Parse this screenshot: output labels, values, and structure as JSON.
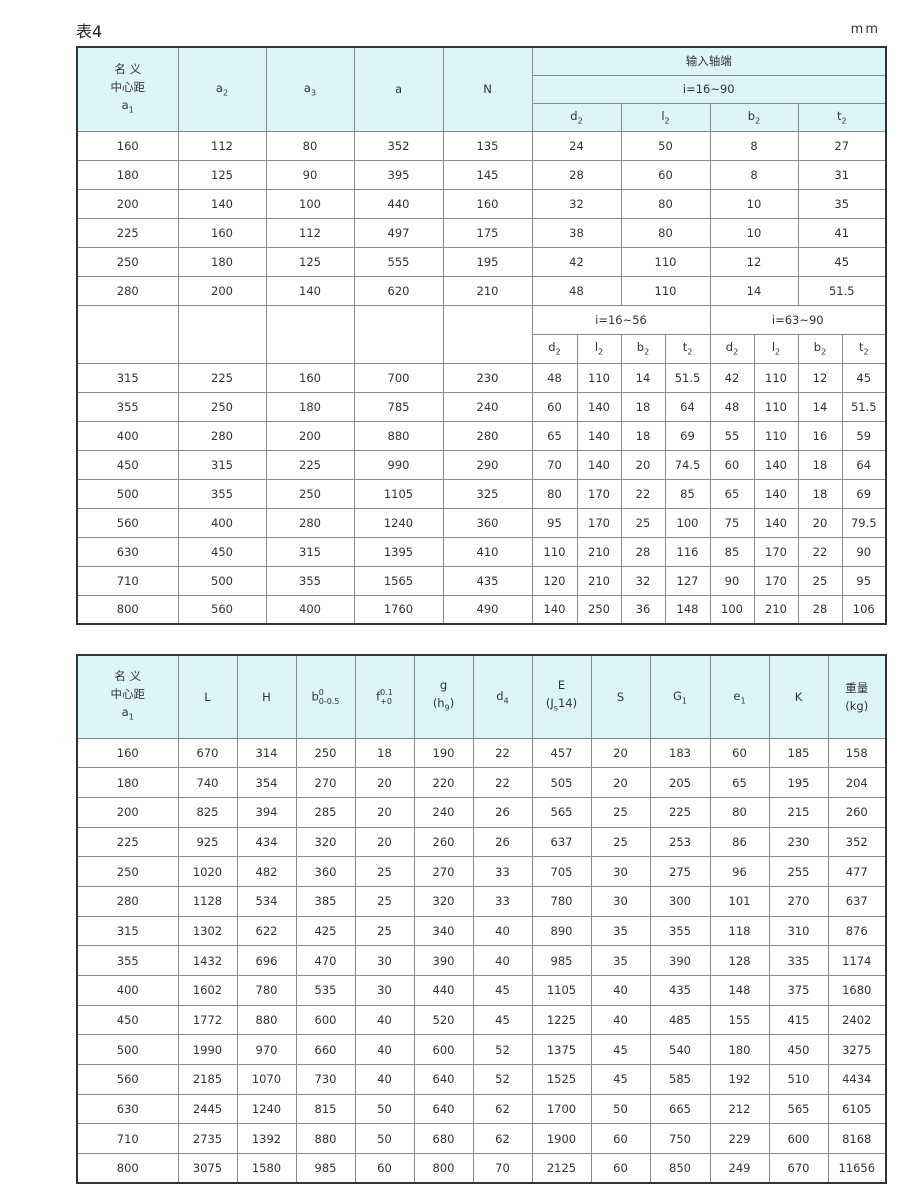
{
  "title": "表4",
  "unit": "mm",
  "table1": {
    "header": {
      "name_line1": "名  义",
      "name_line2": "中心距",
      "a1": "a",
      "a1_sub": "1",
      "a2": "a",
      "a2_sub": "2",
      "a3": "a",
      "a3_sub": "3",
      "a": "a",
      "N": "N",
      "input_shaft": "输入轴端",
      "ratio_all": "i=16~90",
      "ratio_low": "i=16~56",
      "ratio_high": "i=63~90",
      "d2": "d",
      "l2": "l",
      "b2": "b",
      "t2": "t",
      "sub2": "2"
    },
    "rows_top": [
      [
        "160",
        "112",
        "80",
        "352",
        "135",
        "24",
        "50",
        "8",
        "27"
      ],
      [
        "180",
        "125",
        "90",
        "395",
        "145",
        "28",
        "60",
        "8",
        "31"
      ],
      [
        "200",
        "140",
        "100",
        "440",
        "160",
        "32",
        "80",
        "10",
        "35"
      ],
      [
        "225",
        "160",
        "112",
        "497",
        "175",
        "38",
        "80",
        "10",
        "41"
      ],
      [
        "250",
        "180",
        "125",
        "555",
        "195",
        "42",
        "110",
        "12",
        "45"
      ],
      [
        "280",
        "200",
        "140",
        "620",
        "210",
        "48",
        "110",
        "14",
        "51.5"
      ]
    ],
    "rows_bottom": [
      [
        "315",
        "225",
        "160",
        "700",
        "230",
        "48",
        "110",
        "14",
        "51.5",
        "42",
        "110",
        "12",
        "45"
      ],
      [
        "355",
        "250",
        "180",
        "785",
        "240",
        "60",
        "140",
        "18",
        "64",
        "48",
        "110",
        "14",
        "51.5"
      ],
      [
        "400",
        "280",
        "200",
        "880",
        "280",
        "65",
        "140",
        "18",
        "69",
        "55",
        "110",
        "16",
        "59"
      ],
      [
        "450",
        "315",
        "225",
        "990",
        "290",
        "70",
        "140",
        "20",
        "74.5",
        "60",
        "140",
        "18",
        "64"
      ],
      [
        "500",
        "355",
        "250",
        "1105",
        "325",
        "80",
        "170",
        "22",
        "85",
        "65",
        "140",
        "18",
        "69"
      ],
      [
        "560",
        "400",
        "280",
        "1240",
        "360",
        "95",
        "170",
        "25",
        "100",
        "75",
        "140",
        "20",
        "79.5"
      ],
      [
        "630",
        "450",
        "315",
        "1395",
        "410",
        "110",
        "210",
        "28",
        "116",
        "85",
        "170",
        "22",
        "90"
      ],
      [
        "710",
        "500",
        "355",
        "1565",
        "435",
        "120",
        "210",
        "32",
        "127",
        "90",
        "170",
        "25",
        "95"
      ],
      [
        "800",
        "560",
        "400",
        "1760",
        "490",
        "140",
        "250",
        "36",
        "148",
        "100",
        "210",
        "28",
        "106"
      ]
    ]
  },
  "table2": {
    "header": {
      "name_line1": "名  义",
      "name_line2": "中心距",
      "a1": "a",
      "a1_sub": "1",
      "L": "L",
      "H": "H",
      "b": "b",
      "b_sup": "0",
      "b_sub": "0-0.5",
      "f": "f",
      "f_sup": "0.1",
      "f_sub": "+0",
      "g": "g",
      "g_tol": "(h",
      "g_tol_sub": "9",
      "g_tol_end": ")",
      "d4": "d",
      "d4_sub": "4",
      "E": "E",
      "E_tol": "(J",
      "E_tol_sub": "s",
      "E_tol_end": "14)",
      "S": "S",
      "G1": "G",
      "G1_sub": "1",
      "e1": "e",
      "e1_sub": "1",
      "K": "K",
      "weight": "重量",
      "weight_unit": "(kg)"
    },
    "rows": [
      [
        "160",
        "670",
        "314",
        "250",
        "18",
        "190",
        "22",
        "457",
        "20",
        "183",
        "60",
        "185",
        "158"
      ],
      [
        "180",
        "740",
        "354",
        "270",
        "20",
        "220",
        "22",
        "505",
        "20",
        "205",
        "65",
        "195",
        "204"
      ],
      [
        "200",
        "825",
        "394",
        "285",
        "20",
        "240",
        "26",
        "565",
        "25",
        "225",
        "80",
        "215",
        "260"
      ],
      [
        "225",
        "925",
        "434",
        "320",
        "20",
        "260",
        "26",
        "637",
        "25",
        "253",
        "86",
        "230",
        "352"
      ],
      [
        "250",
        "1020",
        "482",
        "360",
        "25",
        "270",
        "33",
        "705",
        "30",
        "275",
        "96",
        "255",
        "477"
      ],
      [
        "280",
        "1128",
        "534",
        "385",
        "25",
        "320",
        "33",
        "780",
        "30",
        "300",
        "101",
        "270",
        "637"
      ],
      [
        "315",
        "1302",
        "622",
        "425",
        "25",
        "340",
        "40",
        "890",
        "35",
        "355",
        "118",
        "310",
        "876"
      ],
      [
        "355",
        "1432",
        "696",
        "470",
        "30",
        "390",
        "40",
        "985",
        "35",
        "390",
        "128",
        "335",
        "1174"
      ],
      [
        "400",
        "1602",
        "780",
        "535",
        "30",
        "440",
        "45",
        "1105",
        "40",
        "435",
        "148",
        "375",
        "1680"
      ],
      [
        "450",
        "1772",
        "880",
        "600",
        "40",
        "520",
        "45",
        "1225",
        "40",
        "485",
        "155",
        "415",
        "2402"
      ],
      [
        "500",
        "1990",
        "970",
        "660",
        "40",
        "600",
        "52",
        "1375",
        "45",
        "540",
        "180",
        "450",
        "3275"
      ],
      [
        "560",
        "2185",
        "1070",
        "730",
        "40",
        "640",
        "52",
        "1525",
        "45",
        "585",
        "192",
        "510",
        "4434"
      ],
      [
        "630",
        "2445",
        "1240",
        "815",
        "50",
        "640",
        "62",
        "1700",
        "50",
        "665",
        "212",
        "565",
        "6105"
      ],
      [
        "710",
        "2735",
        "1392",
        "880",
        "50",
        "680",
        "62",
        "1900",
        "60",
        "750",
        "229",
        "600",
        "8168"
      ],
      [
        "800",
        "3075",
        "1580",
        "985",
        "60",
        "800",
        "70",
        "2125",
        "60",
        "850",
        "249",
        "670",
        "11656"
      ]
    ]
  },
  "colors": {
    "header_bg": "#dcf4fa",
    "border": "#333333",
    "grid": "#8a8a8a"
  }
}
